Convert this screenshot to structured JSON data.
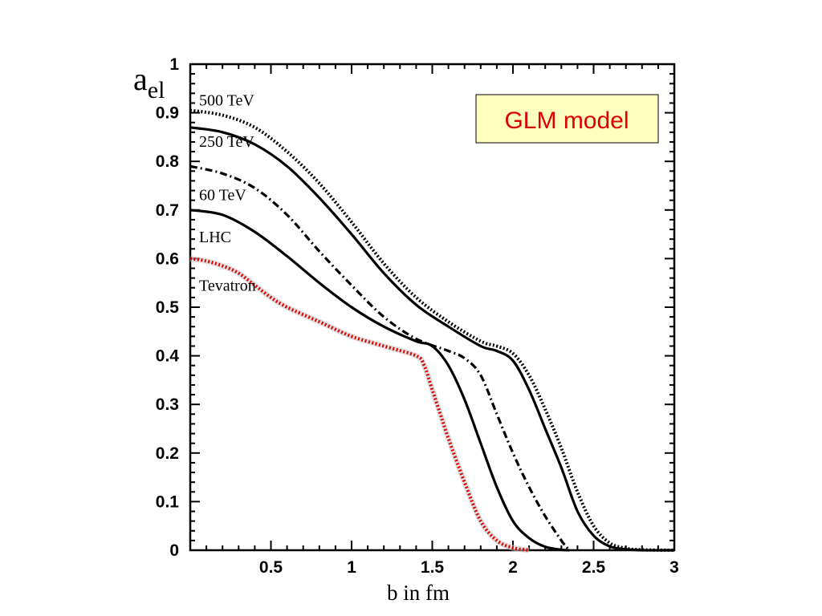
{
  "chart_data": {
    "type": "line",
    "title": "",
    "xlabel": "b in fm",
    "ylabel": "a",
    "ylabel_sub": "el",
    "xlim": [
      0,
      3
    ],
    "ylim": [
      0,
      1
    ],
    "x_ticks": [
      0.5,
      1,
      1.5,
      2,
      2.5,
      3
    ],
    "x_tick_labels": [
      "0.5",
      "1",
      "1.5",
      "2",
      "2.5",
      "3"
    ],
    "y_ticks": [
      0,
      0.1,
      0.2,
      0.3,
      0.4,
      0.5,
      0.6,
      0.7,
      0.8,
      0.9,
      1
    ],
    "y_tick_labels": [
      "0",
      "0.1",
      "0.2",
      "0.3",
      "0.4",
      "0.5",
      "0.6",
      "0.7",
      "0.8",
      "0.9",
      "1"
    ],
    "grid": false,
    "annotation": {
      "text": "GLM model",
      "color": "#e00000",
      "background": "#ffffc0",
      "placement": "top-right"
    },
    "series": [
      {
        "name": "500 TeV",
        "style": "dotted",
        "color": "#000000",
        "x": [
          0,
          0.2,
          0.4,
          0.6,
          0.8,
          1.0,
          1.2,
          1.4,
          1.6,
          1.8,
          1.9,
          2.0,
          2.1,
          2.2,
          2.3,
          2.4,
          2.5,
          2.6,
          2.7,
          2.8,
          3.0
        ],
        "y": [
          0.905,
          0.895,
          0.87,
          0.82,
          0.755,
          0.675,
          0.59,
          0.52,
          0.47,
          0.43,
          0.42,
          0.405,
          0.36,
          0.29,
          0.21,
          0.12,
          0.05,
          0.015,
          0.004,
          0.001,
          0
        ]
      },
      {
        "name": "250 TeV",
        "style": "solid",
        "color": "#000000",
        "x": [
          0,
          0.2,
          0.4,
          0.6,
          0.8,
          1.0,
          1.2,
          1.4,
          1.6,
          1.8,
          1.9,
          2.0,
          2.1,
          2.2,
          2.3,
          2.4,
          2.5,
          2.6,
          2.7,
          2.8,
          3.0
        ],
        "y": [
          0.87,
          0.86,
          0.835,
          0.79,
          0.725,
          0.65,
          0.57,
          0.505,
          0.46,
          0.42,
          0.41,
          0.39,
          0.33,
          0.25,
          0.17,
          0.08,
          0.03,
          0.008,
          0.002,
          0,
          0
        ]
      },
      {
        "name": "60 TeV",
        "style": "dashdot",
        "color": "#000000",
        "x": [
          0,
          0.2,
          0.4,
          0.6,
          0.8,
          1.0,
          1.2,
          1.4,
          1.6,
          1.7,
          1.8,
          1.9,
          2.0,
          2.1,
          2.2,
          2.3,
          2.35
        ],
        "y": [
          0.79,
          0.775,
          0.745,
          0.69,
          0.615,
          0.545,
          0.48,
          0.435,
          0.41,
          0.395,
          0.36,
          0.28,
          0.2,
          0.13,
          0.07,
          0.02,
          0
        ]
      },
      {
        "name": "LHC",
        "style": "solid",
        "color": "#000000",
        "x": [
          0,
          0.2,
          0.4,
          0.6,
          0.8,
          1.0,
          1.2,
          1.4,
          1.5,
          1.6,
          1.7,
          1.8,
          1.9,
          2.0,
          2.1,
          2.2,
          2.3,
          2.35
        ],
        "y": [
          0.7,
          0.69,
          0.655,
          0.605,
          0.55,
          0.5,
          0.46,
          0.43,
          0.42,
          0.38,
          0.31,
          0.22,
          0.13,
          0.06,
          0.025,
          0.007,
          0.001,
          0
        ]
      },
      {
        "name": "Tevatron",
        "style": "dotted",
        "color": "#e00000",
        "x": [
          0,
          0.1,
          0.2,
          0.3,
          0.4,
          0.5,
          0.6,
          0.8,
          1.0,
          1.2,
          1.4,
          1.45,
          1.5,
          1.55,
          1.6,
          1.7,
          1.8,
          1.9,
          2.0,
          2.1
        ],
        "y": [
          0.6,
          0.595,
          0.585,
          0.57,
          0.545,
          0.52,
          0.5,
          0.47,
          0.44,
          0.42,
          0.4,
          0.38,
          0.33,
          0.28,
          0.23,
          0.14,
          0.06,
          0.02,
          0.005,
          0
        ]
      }
    ]
  }
}
